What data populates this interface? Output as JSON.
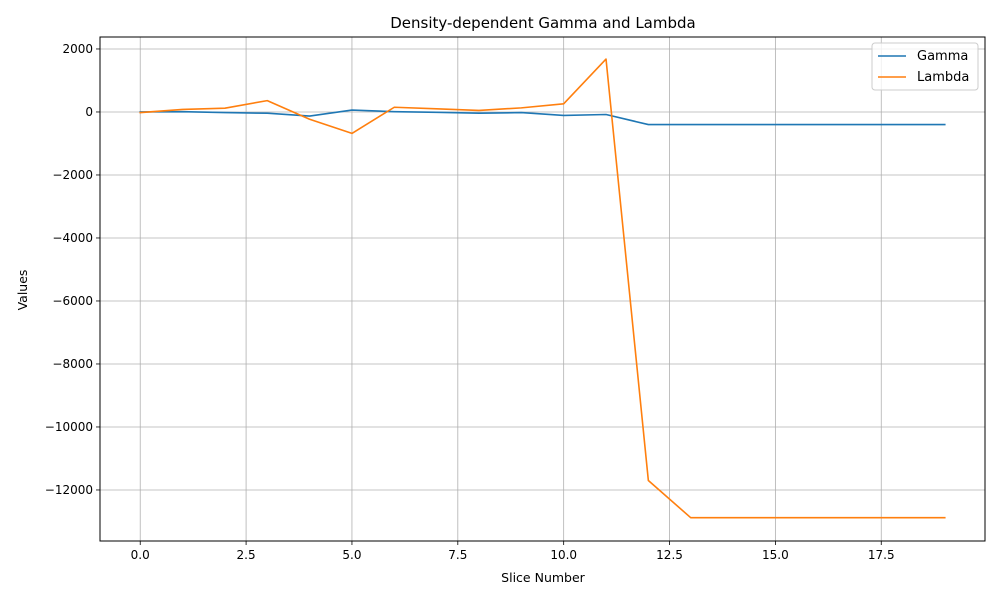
{
  "chart_data": {
    "type": "line",
    "title": "Density-dependent Gamma and Lambda",
    "xlabel": "Slice Number",
    "ylabel": "Values",
    "xlim": [
      -0.95,
      19.95
    ],
    "ylim": [
      -13620,
      2380
    ],
    "xticks": [
      0.0,
      2.5,
      5.0,
      7.5,
      10.0,
      12.5,
      15.0,
      17.5
    ],
    "xtick_labels": [
      "0.0",
      "2.5",
      "5.0",
      "7.5",
      "10.0",
      "12.5",
      "15.0",
      "17.5"
    ],
    "yticks": [
      2000,
      0,
      -2000,
      -4000,
      -6000,
      -8000,
      -10000,
      -12000
    ],
    "ytick_labels": [
      "2000",
      "0",
      "−2000",
      "−4000",
      "−6000",
      "−8000",
      "−10000",
      "−12000"
    ],
    "grid": true,
    "legend_position": "top-right",
    "x": [
      0,
      1,
      2,
      3,
      4,
      5,
      6,
      7,
      8,
      9,
      10,
      11,
      12,
      13,
      14,
      15,
      16,
      17,
      18,
      19
    ],
    "series": [
      {
        "name": "Gamma",
        "color": "#1f77b4",
        "values": [
          0,
          10,
          -20,
          -40,
          -130,
          60,
          10,
          -10,
          -40,
          -20,
          -110,
          -80,
          -400,
          -400,
          -400,
          -400,
          -400,
          -400,
          -400,
          -400
        ]
      },
      {
        "name": "Lambda",
        "color": "#ff7f0e",
        "values": [
          -20,
          80,
          120,
          360,
          -230,
          -680,
          150,
          100,
          50,
          130,
          260,
          1680,
          -11700,
          -12880,
          -12880,
          -12880,
          -12880,
          -12880,
          -12880,
          -12880
        ]
      }
    ]
  }
}
